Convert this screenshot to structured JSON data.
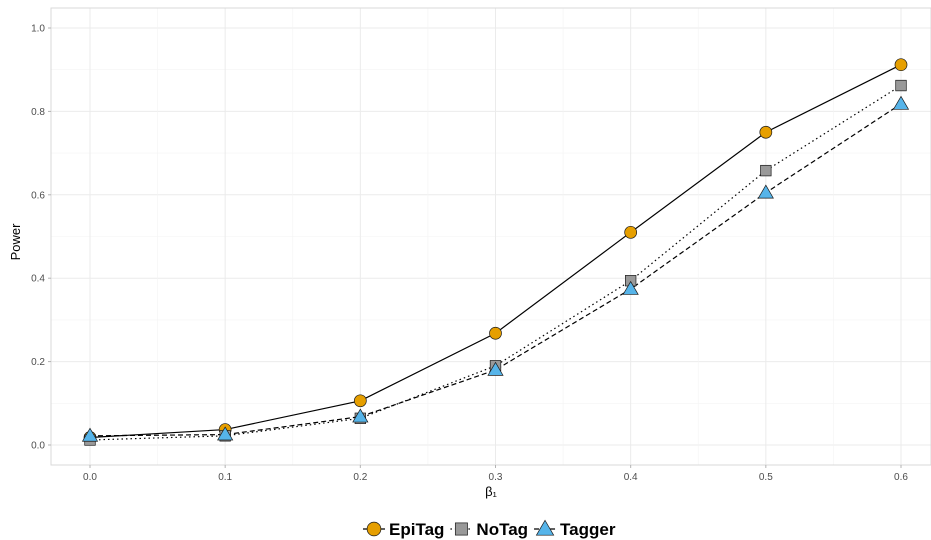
{
  "chart_data": {
    "type": "line",
    "xlabel": "β₁",
    "ylabel": "Power",
    "x": [
      0.0,
      0.1,
      0.2,
      0.3,
      0.4,
      0.5,
      0.6
    ],
    "x_tick_labels": [
      "0.0",
      "0.1",
      "0.2",
      "0.3",
      "0.4",
      "0.5",
      "0.6"
    ],
    "y_tick_labels": [
      "0.0",
      "0.2",
      "0.4",
      "0.6",
      "0.8",
      "1.0"
    ],
    "y_ticks": [
      0.0,
      0.2,
      0.4,
      0.6,
      0.8,
      1.0
    ],
    "xlim": [
      -0.01,
      0.6
    ],
    "ylim": [
      -0.048,
      1.05
    ],
    "grid": true,
    "legend_position": "bottom",
    "series": [
      {
        "name": "EpiTag",
        "values": [
          0.018,
          0.037,
          0.106,
          0.268,
          0.51,
          0.75,
          0.912
        ],
        "marker": "circle",
        "line_style": "solid",
        "color": "#E69F00"
      },
      {
        "name": "NoTag",
        "values": [
          0.012,
          0.022,
          0.064,
          0.19,
          0.394,
          0.658,
          0.862
        ],
        "marker": "square",
        "line_style": "dotted",
        "color": "#999999"
      },
      {
        "name": "Tagger",
        "values": [
          0.022,
          0.025,
          0.068,
          0.18,
          0.374,
          0.605,
          0.818
        ],
        "marker": "triangle",
        "line_style": "dashed",
        "color": "#56B4E9"
      }
    ]
  }
}
